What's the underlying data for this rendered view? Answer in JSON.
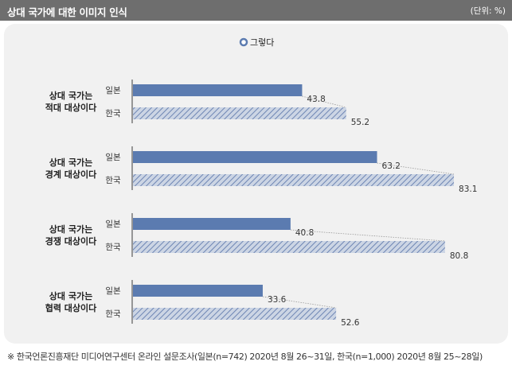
{
  "title": "상대 국가에 대한 이미지 인식",
  "unit": "(단위: %)",
  "footnote": "※  한국언론진흥재단 미디어연구센터 온라인 설문조사(일본(n=742) 2020년 8월 26~31일, 한국(n=1,000) 2020년 8월 25~28일)",
  "colors": {
    "japan": "#5b7bb0",
    "korea_hatch_bg": "#ccd5e4",
    "korea_hatch_line": "#6e86b4",
    "text": "#222222"
  },
  "chart_data": {
    "type": "bar",
    "orientation": "horizontal",
    "legend": {
      "label": "그렇다",
      "position": "top-center"
    },
    "groups": [
      {
        "label_lines": [
          "상대 국가는",
          "적대 대상이다"
        ],
        "bars": [
          {
            "country": "일본",
            "value": 43.8
          },
          {
            "country": "한국",
            "value": 55.2
          }
        ]
      },
      {
        "label_lines": [
          "상대 국가는",
          "경계 대상이다"
        ],
        "bars": [
          {
            "country": "일본",
            "value": 63.2
          },
          {
            "country": "한국",
            "value": 83.1
          }
        ]
      },
      {
        "label_lines": [
          "상대 국가는",
          "경쟁 대상이다"
        ],
        "bars": [
          {
            "country": "일본",
            "value": 40.8
          },
          {
            "country": "한국",
            "value": 80.8
          }
        ]
      },
      {
        "label_lines": [
          "상대 국가는",
          "협력 대상이다"
        ],
        "bars": [
          {
            "country": "일본",
            "value": 33.6
          },
          {
            "country": "한국",
            "value": 52.6
          }
        ]
      }
    ]
  }
}
